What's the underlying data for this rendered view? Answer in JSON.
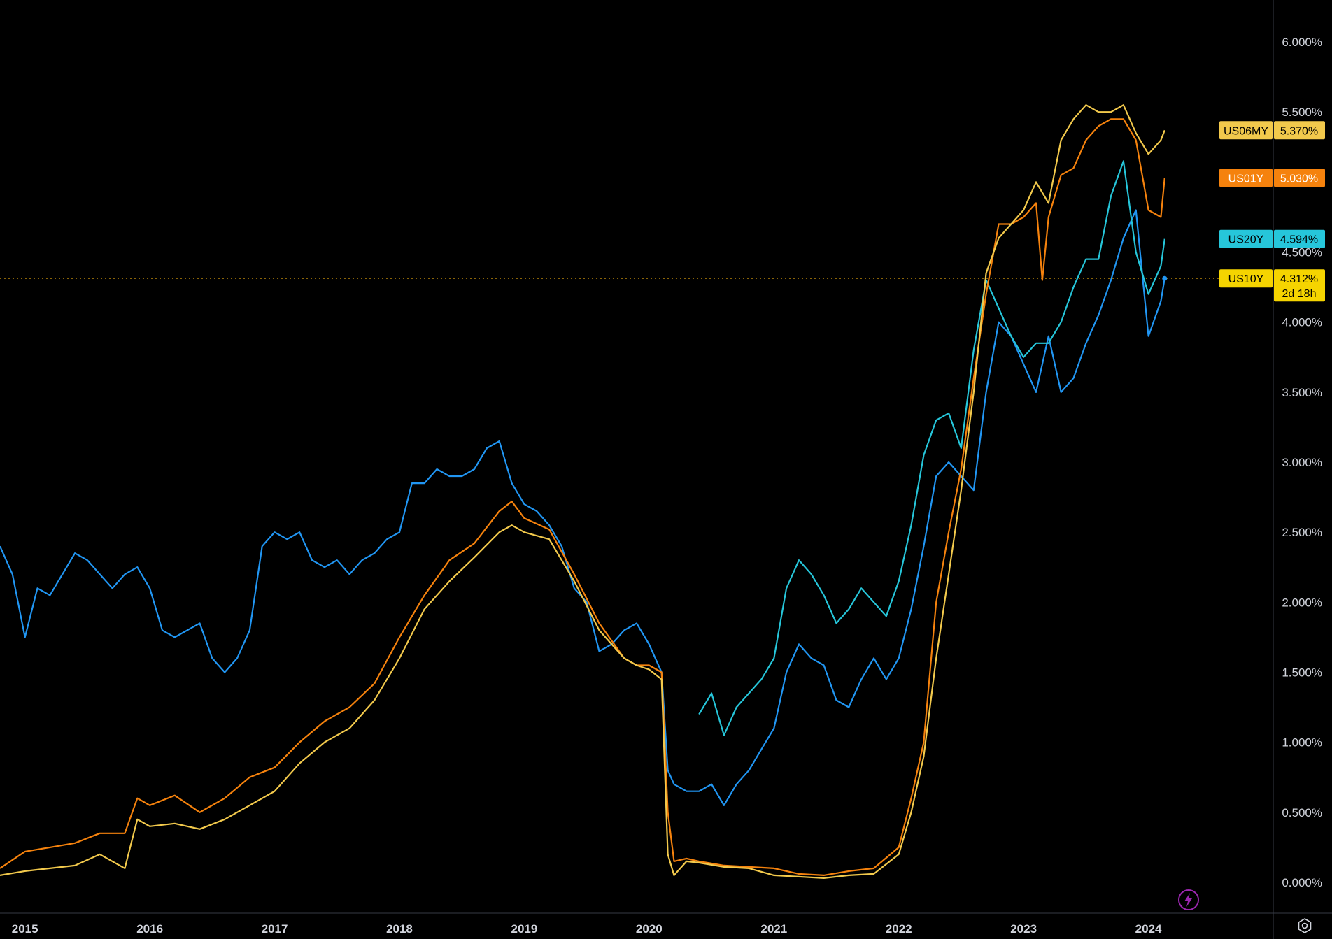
{
  "colors": {
    "background": "#000000",
    "axis_line": "#363a45",
    "axis_text": "#d1d4dc",
    "US06MY": "#f2c94c",
    "US01Y": "#f5820d",
    "US20Y": "#26c6da",
    "US10Y": "#2196f3",
    "crosshair": "#b8860b",
    "tag_US10Y": "#f5d400",
    "flash": "#9c27b0"
  },
  "price_tags": [
    {
      "symbol": "US06MY",
      "value": "5.370%",
      "sub": ""
    },
    {
      "symbol": "US01Y",
      "value": "5.030%",
      "sub": ""
    },
    {
      "symbol": "US20Y",
      "value": "4.594%",
      "sub": ""
    },
    {
      "symbol": "US10Y",
      "value": "4.312%",
      "sub": "2d 18h"
    }
  ],
  "icons": {
    "settings": "gear-icon",
    "flash": "lightning-icon"
  },
  "chart_data": {
    "type": "line",
    "title": "",
    "xlabel": "",
    "ylabel": "",
    "x_ticks": [
      "2015",
      "2016",
      "2017",
      "2018",
      "2019",
      "2020",
      "2021",
      "2022",
      "2023",
      "2024"
    ],
    "y_ticks": [
      "0.000%",
      "0.500%",
      "1.000%",
      "1.500%",
      "2.000%",
      "2.500%",
      "3.000%",
      "3.500%",
      "4.000%",
      "4.500%",
      "5.000%",
      "5.500%",
      "6.000%"
    ],
    "xlim": [
      2014.8,
      2025.0
    ],
    "ylim": [
      -0.22,
      6.3
    ],
    "crosshair_y": 4.312,
    "series": [
      {
        "name": "US10Y",
        "x": [
          2014.8,
          2014.9,
          2015.0,
          2015.1,
          2015.2,
          2015.3,
          2015.4,
          2015.5,
          2015.6,
          2015.7,
          2015.8,
          2015.9,
          2016.0,
          2016.1,
          2016.2,
          2016.3,
          2016.4,
          2016.5,
          2016.6,
          2016.7,
          2016.8,
          2016.9,
          2017.0,
          2017.1,
          2017.2,
          2017.3,
          2017.4,
          2017.5,
          2017.6,
          2017.7,
          2017.8,
          2017.9,
          2018.0,
          2018.1,
          2018.2,
          2018.3,
          2018.4,
          2018.5,
          2018.6,
          2018.7,
          2018.8,
          2018.9,
          2019.0,
          2019.1,
          2019.2,
          2019.3,
          2019.4,
          2019.5,
          2019.6,
          2019.7,
          2019.8,
          2019.9,
          2020.0,
          2020.1,
          2020.15,
          2020.2,
          2020.3,
          2020.4,
          2020.5,
          2020.6,
          2020.7,
          2020.8,
          2020.9,
          2021.0,
          2021.1,
          2021.2,
          2021.3,
          2021.4,
          2021.5,
          2021.6,
          2021.7,
          2021.8,
          2021.9,
          2022.0,
          2022.1,
          2022.2,
          2022.3,
          2022.4,
          2022.5,
          2022.6,
          2022.7,
          2022.8,
          2022.9,
          2023.0,
          2023.1,
          2023.2,
          2023.3,
          2023.4,
          2023.5,
          2023.6,
          2023.7,
          2023.8,
          2023.9,
          2024.0,
          2024.1,
          2024.13
        ],
        "y": [
          2.4,
          2.2,
          1.75,
          2.1,
          2.05,
          2.2,
          2.35,
          2.3,
          2.2,
          2.1,
          2.2,
          2.25,
          2.1,
          1.8,
          1.75,
          1.8,
          1.85,
          1.6,
          1.5,
          1.6,
          1.8,
          2.4,
          2.5,
          2.45,
          2.5,
          2.3,
          2.25,
          2.3,
          2.2,
          2.3,
          2.35,
          2.45,
          2.5,
          2.85,
          2.85,
          2.95,
          2.9,
          2.9,
          2.95,
          3.1,
          3.15,
          2.85,
          2.7,
          2.65,
          2.55,
          2.4,
          2.1,
          2.0,
          1.65,
          1.7,
          1.8,
          1.85,
          1.7,
          1.5,
          0.8,
          0.7,
          0.65,
          0.65,
          0.7,
          0.55,
          0.7,
          0.8,
          0.95,
          1.1,
          1.5,
          1.7,
          1.6,
          1.55,
          1.3,
          1.25,
          1.45,
          1.6,
          1.45,
          1.6,
          1.95,
          2.4,
          2.9,
          3.0,
          2.9,
          2.8,
          3.5,
          4.0,
          3.9,
          3.7,
          3.5,
          3.9,
          3.5,
          3.6,
          3.85,
          4.05,
          4.3,
          4.6,
          4.8,
          3.9,
          4.15,
          4.312
        ]
      },
      {
        "name": "US20Y",
        "x": [
          2020.4,
          2020.5,
          2020.6,
          2020.7,
          2020.8,
          2020.9,
          2021.0,
          2021.1,
          2021.2,
          2021.3,
          2021.4,
          2021.5,
          2021.6,
          2021.7,
          2021.8,
          2021.9,
          2022.0,
          2022.1,
          2022.2,
          2022.3,
          2022.4,
          2022.5,
          2022.6,
          2022.7,
          2022.8,
          2022.9,
          2023.0,
          2023.1,
          2023.2,
          2023.3,
          2023.4,
          2023.5,
          2023.6,
          2023.7,
          2023.8,
          2023.9,
          2024.0,
          2024.1,
          2024.13
        ],
        "y": [
          1.2,
          1.35,
          1.05,
          1.25,
          1.35,
          1.45,
          1.6,
          2.1,
          2.3,
          2.2,
          2.05,
          1.85,
          1.95,
          2.1,
          2.0,
          1.9,
          2.15,
          2.55,
          3.05,
          3.3,
          3.35,
          3.1,
          3.8,
          4.3,
          4.1,
          3.9,
          3.75,
          3.85,
          3.85,
          4.0,
          4.25,
          4.45,
          4.45,
          4.9,
          5.15,
          4.5,
          4.2,
          4.4,
          4.594
        ]
      },
      {
        "name": "US01Y",
        "x": [
          2014.8,
          2015.0,
          2015.2,
          2015.4,
          2015.6,
          2015.8,
          2015.9,
          2016.0,
          2016.2,
          2016.4,
          2016.6,
          2016.8,
          2017.0,
          2017.2,
          2017.4,
          2017.6,
          2017.8,
          2018.0,
          2018.2,
          2018.4,
          2018.6,
          2018.8,
          2018.9,
          2019.0,
          2019.2,
          2019.4,
          2019.6,
          2019.8,
          2019.9,
          2020.0,
          2020.1,
          2020.15,
          2020.2,
          2020.3,
          2020.4,
          2020.6,
          2020.8,
          2021.0,
          2021.2,
          2021.4,
          2021.6,
          2021.8,
          2022.0,
          2022.1,
          2022.2,
          2022.3,
          2022.4,
          2022.5,
          2022.6,
          2022.7,
          2022.8,
          2022.9,
          2023.0,
          2023.1,
          2023.15,
          2023.2,
          2023.3,
          2023.4,
          2023.5,
          2023.6,
          2023.7,
          2023.8,
          2023.9,
          2024.0,
          2024.1,
          2024.13
        ],
        "y": [
          0.1,
          0.22,
          0.25,
          0.28,
          0.35,
          0.35,
          0.6,
          0.55,
          0.62,
          0.5,
          0.6,
          0.75,
          0.82,
          1.0,
          1.15,
          1.25,
          1.42,
          1.75,
          2.05,
          2.3,
          2.42,
          2.65,
          2.72,
          2.6,
          2.52,
          2.2,
          1.85,
          1.6,
          1.55,
          1.55,
          1.5,
          0.5,
          0.15,
          0.17,
          0.15,
          0.12,
          0.11,
          0.1,
          0.06,
          0.05,
          0.08,
          0.1,
          0.25,
          0.6,
          1.0,
          2.0,
          2.5,
          2.95,
          3.6,
          4.2,
          4.7,
          4.7,
          4.75,
          4.85,
          4.3,
          4.75,
          5.05,
          5.1,
          5.3,
          5.4,
          5.45,
          5.45,
          5.3,
          4.8,
          4.75,
          5.03
        ]
      },
      {
        "name": "US06MY",
        "x": [
          2014.8,
          2015.0,
          2015.2,
          2015.4,
          2015.6,
          2015.8,
          2015.9,
          2016.0,
          2016.2,
          2016.4,
          2016.6,
          2016.8,
          2017.0,
          2017.2,
          2017.4,
          2017.6,
          2017.8,
          2018.0,
          2018.2,
          2018.4,
          2018.6,
          2018.8,
          2018.9,
          2019.0,
          2019.2,
          2019.4,
          2019.6,
          2019.8,
          2019.9,
          2020.0,
          2020.1,
          2020.15,
          2020.2,
          2020.3,
          2020.4,
          2020.6,
          2020.8,
          2021.0,
          2021.2,
          2021.4,
          2021.6,
          2021.8,
          2022.0,
          2022.1,
          2022.2,
          2022.3,
          2022.4,
          2022.5,
          2022.6,
          2022.7,
          2022.8,
          2022.9,
          2023.0,
          2023.1,
          2023.2,
          2023.3,
          2023.4,
          2023.5,
          2023.6,
          2023.7,
          2023.8,
          2023.9,
          2024.0,
          2024.1,
          2024.13
        ],
        "y": [
          0.05,
          0.08,
          0.1,
          0.12,
          0.2,
          0.1,
          0.45,
          0.4,
          0.42,
          0.38,
          0.45,
          0.55,
          0.65,
          0.85,
          1.0,
          1.1,
          1.3,
          1.6,
          1.95,
          2.15,
          2.32,
          2.5,
          2.55,
          2.5,
          2.45,
          2.15,
          1.8,
          1.6,
          1.55,
          1.52,
          1.45,
          0.2,
          0.05,
          0.15,
          0.14,
          0.11,
          0.1,
          0.05,
          0.04,
          0.03,
          0.05,
          0.06,
          0.2,
          0.5,
          0.9,
          1.6,
          2.2,
          2.8,
          3.5,
          4.35,
          4.6,
          4.7,
          4.8,
          5.0,
          4.85,
          5.3,
          5.45,
          5.55,
          5.5,
          5.5,
          5.55,
          5.35,
          5.2,
          5.3,
          5.37
        ]
      }
    ]
  }
}
